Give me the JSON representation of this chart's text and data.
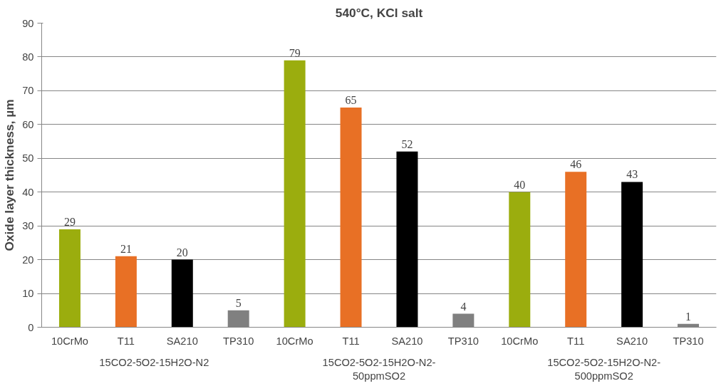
{
  "chart_data": {
    "type": "bar",
    "title": "540°C, KCl salt",
    "ylabel": "Oxide layer thickness, µm",
    "categories": [
      "10CrMo",
      "T11",
      "SA210",
      "TP310",
      "10CrMo",
      "T11",
      "SA210",
      "TP310",
      "10CrMo",
      "T11",
      "SA210",
      "TP310"
    ],
    "values": [
      29,
      21,
      20,
      5,
      79,
      65,
      52,
      4,
      40,
      46,
      43,
      1
    ],
    "colors": [
      "#9bad0e",
      "#e87025",
      "#000000",
      "#808080",
      "#9bad0e",
      "#e87025",
      "#000000",
      "#808080",
      "#9bad0e",
      "#e87025",
      "#000000",
      "#808080"
    ],
    "annotations": [
      "15CO2-5O2-15H2O-N2",
      "15CO2-5O2-15H2O-N2-\n50ppmSO2",
      "15CO2-5O2-15H2O-N2-\n500ppmSO2"
    ],
    "ylim": [
      0,
      90
    ],
    "yticks": [
      0,
      10,
      20,
      30,
      40,
      50,
      60,
      70,
      80,
      90
    ],
    "grid": "y",
    "data_labels": true
  }
}
